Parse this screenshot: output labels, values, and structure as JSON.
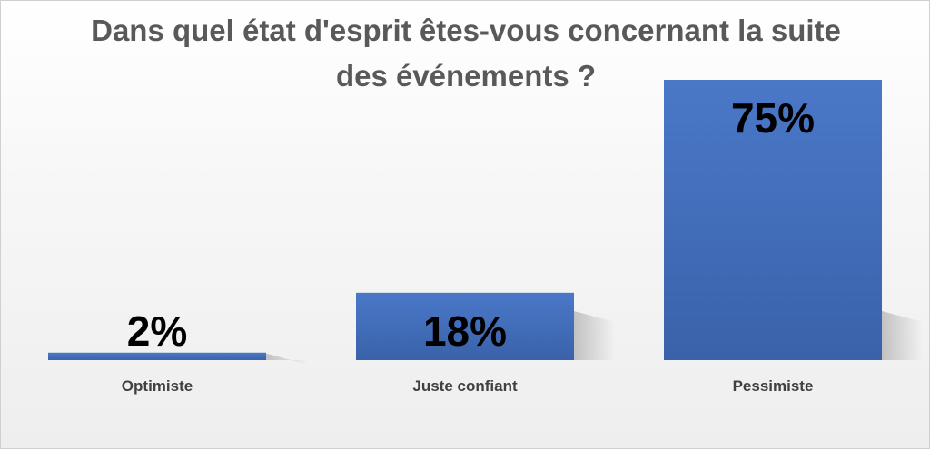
{
  "chart_data": {
    "type": "bar",
    "title": "Dans quel état d'esprit êtes-vous concernant la suite des événements ?",
    "categories": [
      "Optimiste",
      "Juste confiant",
      "Pessimiste"
    ],
    "values": [
      2,
      18,
      75
    ],
    "value_labels": [
      "2%",
      "18%",
      "75%"
    ],
    "ylim": [
      0,
      75
    ],
    "grid": false,
    "legend": "none",
    "colors": {
      "bar": "#4472c4",
      "bar_dark": "#3a62aa",
      "value_label": "#000000",
      "category_label": "#404040",
      "title": "#595959"
    }
  }
}
